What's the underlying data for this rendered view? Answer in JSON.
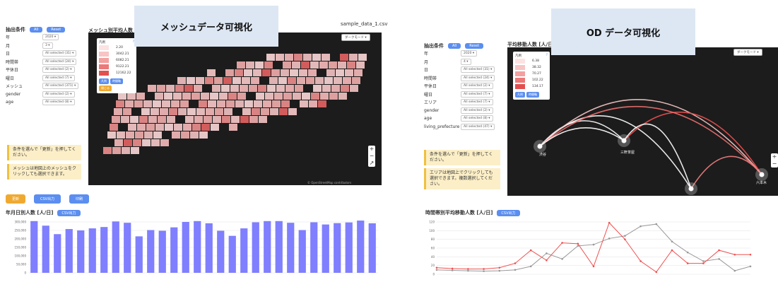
{
  "left": {
    "filter_title": "抽出条件",
    "btn_all": "All",
    "btn_reset": "Reset",
    "filters": [
      {
        "label": "年",
        "value": "2020 ▾"
      },
      {
        "label": "月",
        "value": "3 ▾"
      },
      {
        "label": "日",
        "value": "All selected (31) ▾"
      },
      {
        "label": "時間帯",
        "value": "All selected (24) ▾"
      },
      {
        "label": "平休日",
        "value": "All selected (2) ▾"
      },
      {
        "label": "曜日",
        "value": "All selected (7) ▾"
      },
      {
        "label": "メッシュ",
        "value": "All selected (371) ▾"
      },
      {
        "label": "gender",
        "value": "All selected (2) ▾"
      },
      {
        "label": "age",
        "value": "All selected (8) ▾"
      }
    ],
    "note1": "条件を選んで「更新」を押してください。",
    "note2": "メッシュは地図上のメッシュをクリックしても選択できます。",
    "map_title": "メッシュ別平均人数",
    "filename": "sample_data_1.csv",
    "mode": "ダークモード ▾",
    "legend_title": "凡例",
    "legend_help": "?",
    "legend_values": [
      "2.20",
      "3042.21",
      "6082.21",
      "9122.21",
      "12162.22"
    ],
    "legend_btn1": "凡例",
    "legend_btn2": "時間軸",
    "legend_close": "閉じる",
    "zoom_in": "+",
    "zoom_out": "−",
    "compass": "↗",
    "map_attrib": "© OpenStreetMap contributors",
    "banner": "メッシュデータ可視化",
    "actions": [
      "更新",
      "CSV出力",
      "印刷"
    ],
    "chart_title": "年月日別人数 [人/日]",
    "chart_btn": "CSV出力"
  },
  "right": {
    "filter_title": "抽出条件",
    "btn_all": "All",
    "btn_reset": "Reset",
    "filters": [
      {
        "label": "年",
        "value": "2020 ▾"
      },
      {
        "label": "月",
        "value": "4 ▾"
      },
      {
        "label": "日",
        "value": "All selected (31) ▾"
      },
      {
        "label": "時間帯",
        "value": "All selected (24) ▾"
      },
      {
        "label": "平休日",
        "value": "All selected (2) ▾"
      },
      {
        "label": "曜日",
        "value": "All selected (7) ▾"
      },
      {
        "label": "エリア",
        "value": "All selected (7) ▾"
      },
      {
        "label": "gender",
        "value": "All selected (2) ▾"
      },
      {
        "label": "age",
        "value": "All selected (8) ▾"
      },
      {
        "label": "living_prefecture",
        "value": "All selected (47) ▾"
      }
    ],
    "note1": "条件を選んで「更新」を押してください。",
    "note2": "エリアは地図上でクリックしても選択できます。複数選択してください。",
    "map_title": "平均移動人数 [人/日]",
    "mode": "ダークモード ▾",
    "legend_title": "凡例",
    "legend_help": "?",
    "legend_values": [
      "6.38",
      "38.32",
      "70.27",
      "102.22",
      "134.17"
    ],
    "legend_btn1": "凡例",
    "legend_btn2": "時間軸",
    "nodes": [
      "渋谷",
      "三軒茶屋",
      "六本木"
    ],
    "zoom_in": "+",
    "zoom_out": "−",
    "banner": "OD データ可視化",
    "chart_title": "時間帯別平均移動人数 [人/日]",
    "chart_btn": "CSV出力"
  },
  "colors": {
    "accent_blue": "#5b8ef0",
    "accent_orange": "#f0a930",
    "bar": "#7f7fff",
    "line_gray": "#999999",
    "line_red": "#f05050"
  },
  "chart_data": [
    {
      "type": "bar",
      "title": "年月日別人数 [人/日]",
      "ylim": [
        0,
        300000
      ],
      "yticks": [
        "300,000",
        "250,000",
        "200,000",
        "150,000",
        "100,000",
        "50,000",
        "0"
      ],
      "values": [
        305000,
        278000,
        228000,
        258000,
        250000,
        262000,
        270000,
        303000,
        295000,
        215000,
        252000,
        248000,
        268000,
        300000,
        305000,
        292000,
        248000,
        218000,
        262000,
        298000,
        305000,
        305000,
        295000,
        252000,
        298000,
        285000,
        293000,
        297000,
        308000,
        292000
      ]
    },
    {
      "type": "line",
      "title": "時間帯別平均移動人数 [人/日]",
      "ylim": [
        0,
        120
      ],
      "yticks": [
        "120",
        "100",
        "80",
        "60",
        "40",
        "20",
        "0"
      ],
      "x": [
        0,
        1,
        2,
        3,
        4,
        5,
        6,
        7,
        8,
        9,
        10,
        11,
        12,
        13,
        14,
        15,
        16,
        17,
        18,
        19,
        20
      ],
      "series": [
        {
          "values": [
            10,
            9,
            8,
            7,
            8,
            10,
            18,
            48,
            35,
            65,
            68,
            82,
            88,
            110,
            115,
            75,
            50,
            30,
            35,
            8,
            18
          ]
        },
        {
          "values": [
            15,
            13,
            12,
            12,
            15,
            25,
            55,
            32,
            72,
            70,
            18,
            118,
            80,
            30,
            5,
            55,
            25,
            25,
            55,
            45,
            45
          ]
        }
      ]
    }
  ]
}
